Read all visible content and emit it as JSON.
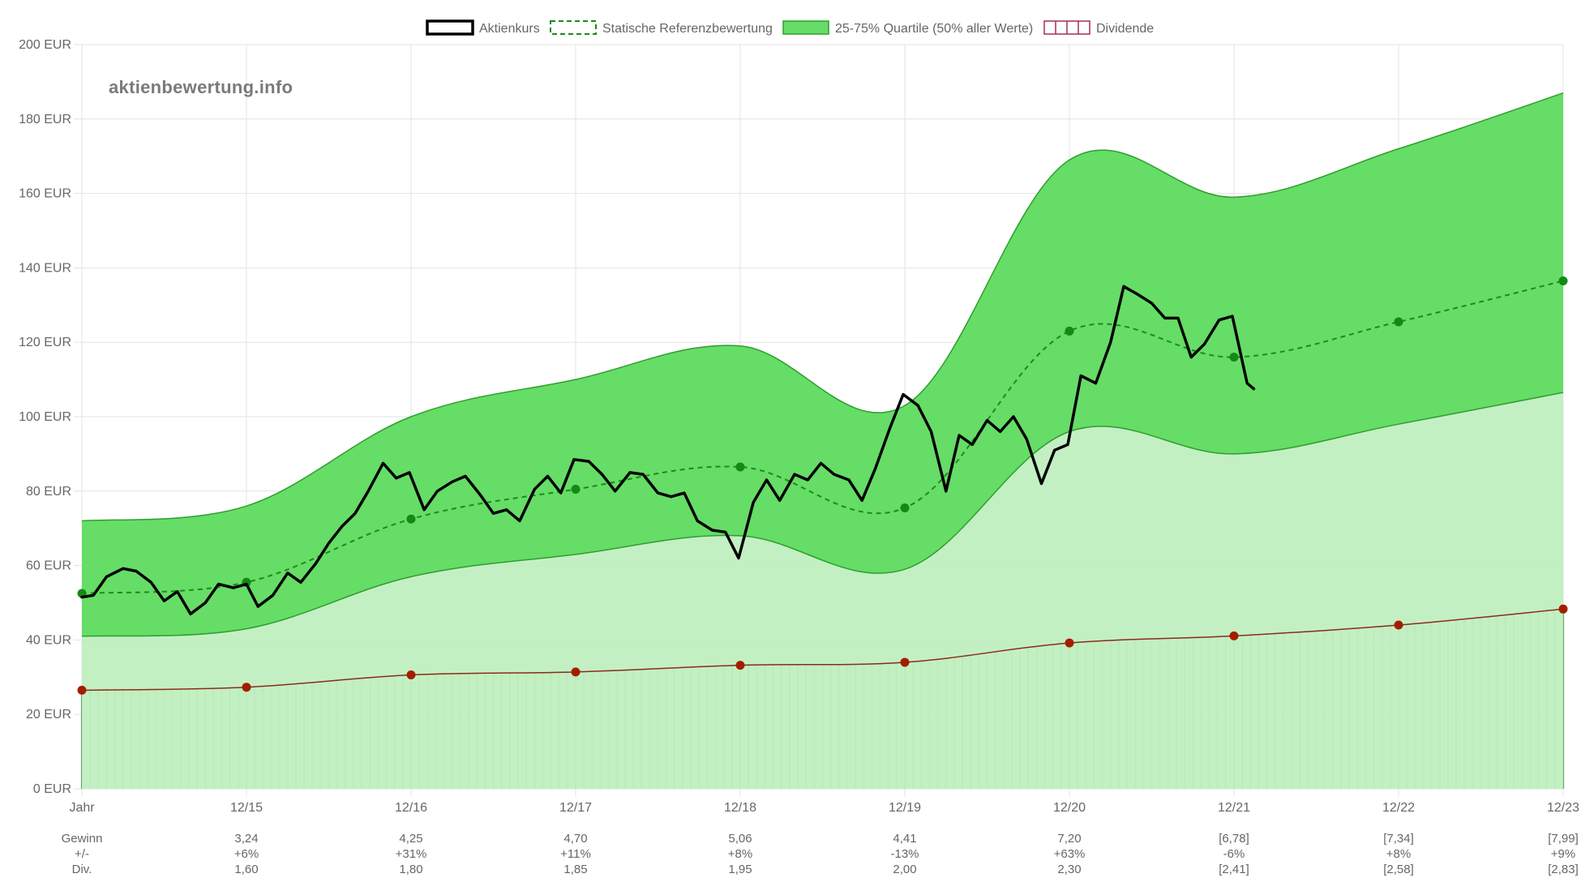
{
  "chart_data": {
    "type": "line",
    "watermark": "aktienbewertung.info",
    "legend_position": "top-center",
    "legend": [
      {
        "label": "Aktienkurs",
        "style": "solid-black"
      },
      {
        "label": "Statische Referenzbewertung",
        "style": "dashed-green"
      },
      {
        "label": "25-75% Quartile (50% aller Werte)",
        "style": "green-fill"
      },
      {
        "label": "Dividende",
        "style": "red-bars"
      }
    ],
    "y_axis": {
      "min": 0,
      "max": 200,
      "step": 20,
      "unit": " EUR",
      "tick_labels": [
        "0 EUR",
        "20 EUR",
        "40 EUR",
        "60 EUR",
        "80 EUR",
        "100 EUR",
        "120 EUR",
        "140 EUR",
        "160 EUR",
        "180 EUR",
        "200 EUR"
      ]
    },
    "x_axis": {
      "min": 0,
      "max": 9,
      "tick_labels": [
        "Jahr",
        "12/15",
        "12/16",
        "12/17",
        "12/18",
        "12/19",
        "12/20",
        "12/21",
        "12/22",
        "12/23"
      ],
      "grid": true
    },
    "colors": {
      "price": "#000000",
      "reference": "#1a8c1a",
      "reference_point": "#138a13",
      "quartile_upper_fill": "#66dd66",
      "quartile_lower_fill": "#c0efc0",
      "quartile_line": "#2e9e2e",
      "dividend_line": "#8b2b1b",
      "dividend_point": "#a31d00",
      "dividend_bar": "#3e8a4e",
      "grid": "#e3e3e3"
    },
    "quartile_upper": [
      [
        0,
        72
      ],
      [
        1,
        76
      ],
      [
        2,
        100
      ],
      [
        3,
        110
      ],
      [
        4,
        119
      ],
      [
        5,
        103
      ],
      [
        6,
        169
      ],
      [
        7,
        159
      ],
      [
        8,
        172
      ],
      [
        9,
        187
      ]
    ],
    "quartile_lower": [
      [
        0,
        41
      ],
      [
        1,
        43
      ],
      [
        2,
        57
      ],
      [
        3,
        63
      ],
      [
        4,
        68
      ],
      [
        5,
        59
      ],
      [
        6,
        96
      ],
      [
        7,
        90
      ],
      [
        8,
        98
      ],
      [
        9,
        106.5
      ]
    ],
    "reference_valuation": [
      [
        0,
        52.5
      ],
      [
        1,
        55.5
      ],
      [
        2,
        72.5
      ],
      [
        3,
        80.5
      ],
      [
        4,
        86.5
      ],
      [
        5,
        75.5
      ],
      [
        6,
        123
      ],
      [
        7,
        116
      ],
      [
        8,
        125.5
      ],
      [
        9,
        136.5
      ]
    ],
    "dividend_level": [
      [
        0,
        26.5
      ],
      [
        1,
        27.3
      ],
      [
        2,
        30.6
      ],
      [
        3,
        31.4
      ],
      [
        4,
        33.2
      ],
      [
        5,
        34
      ],
      [
        6,
        39.2
      ],
      [
        7,
        41.1
      ],
      [
        8,
        44
      ],
      [
        9,
        48.3
      ]
    ],
    "stock_price": [
      [
        0,
        51.5
      ],
      [
        0.07,
        52
      ],
      [
        0.15,
        57
      ],
      [
        0.25,
        59.2
      ],
      [
        0.33,
        58.5
      ],
      [
        0.42,
        55.5
      ],
      [
        0.5,
        50.5
      ],
      [
        0.58,
        53
      ],
      [
        0.66,
        47
      ],
      [
        0.75,
        50
      ],
      [
        0.83,
        55
      ],
      [
        0.92,
        54
      ],
      [
        1.0,
        55
      ],
      [
        1.07,
        49
      ],
      [
        1.16,
        52
      ],
      [
        1.25,
        58
      ],
      [
        1.33,
        55.5
      ],
      [
        1.42,
        60.5
      ],
      [
        1.5,
        66
      ],
      [
        1.58,
        70.5
      ],
      [
        1.66,
        74
      ],
      [
        1.74,
        80
      ],
      [
        1.83,
        87.5
      ],
      [
        1.91,
        83.5
      ],
      [
        1.99,
        85
      ],
      [
        2.08,
        75
      ],
      [
        2.16,
        80
      ],
      [
        2.25,
        82.5
      ],
      [
        2.33,
        84
      ],
      [
        2.42,
        79
      ],
      [
        2.5,
        74
      ],
      [
        2.58,
        75
      ],
      [
        2.66,
        72
      ],
      [
        2.75,
        80.5
      ],
      [
        2.83,
        84
      ],
      [
        2.91,
        79.5
      ],
      [
        2.99,
        88.5
      ],
      [
        3.08,
        88
      ],
      [
        3.16,
        84.5
      ],
      [
        3.24,
        80
      ],
      [
        3.33,
        85
      ],
      [
        3.41,
        84.5
      ],
      [
        3.5,
        79.5
      ],
      [
        3.58,
        78.5
      ],
      [
        3.66,
        79.5
      ],
      [
        3.74,
        72
      ],
      [
        3.83,
        69.5
      ],
      [
        3.91,
        69
      ],
      [
        3.99,
        62
      ],
      [
        4.08,
        77
      ],
      [
        4.16,
        83
      ],
      [
        4.24,
        77.5
      ],
      [
        4.33,
        84.5
      ],
      [
        4.41,
        83
      ],
      [
        4.49,
        87.5
      ],
      [
        4.57,
        84.5
      ],
      [
        4.66,
        83
      ],
      [
        4.74,
        77.5
      ],
      [
        4.82,
        86
      ],
      [
        4.91,
        97
      ],
      [
        4.99,
        106
      ],
      [
        5.08,
        103
      ],
      [
        5.16,
        96
      ],
      [
        5.25,
        80
      ],
      [
        5.33,
        95
      ],
      [
        5.41,
        92.5
      ],
      [
        5.5,
        99
      ],
      [
        5.58,
        96
      ],
      [
        5.66,
        100
      ],
      [
        5.74,
        94
      ],
      [
        5.83,
        82
      ],
      [
        5.91,
        91
      ],
      [
        5.99,
        92.5
      ],
      [
        6.07,
        111
      ],
      [
        6.16,
        109
      ],
      [
        6.25,
        120
      ],
      [
        6.33,
        135
      ],
      [
        6.41,
        133
      ],
      [
        6.5,
        130.5
      ],
      [
        6.58,
        126.5
      ],
      [
        6.66,
        126.5
      ],
      [
        6.74,
        116
      ],
      [
        6.82,
        119.5
      ],
      [
        6.91,
        126
      ],
      [
        6.99,
        127
      ],
      [
        7.08,
        109
      ],
      [
        7.12,
        107.5
      ]
    ],
    "table": {
      "rows": [
        {
          "label": "Gewinn",
          "values": [
            "3,24",
            "4,25",
            "4,70",
            "5,06",
            "4,41",
            "7,20",
            "[6,78]",
            "[7,34]",
            "[7,99]"
          ]
        },
        {
          "label": "+/-",
          "values": [
            "+6%",
            "+31%",
            "+11%",
            "+8%",
            "-13%",
            "+63%",
            "-6%",
            "+8%",
            "+9%"
          ]
        },
        {
          "label": "Div.",
          "values": [
            "1,60",
            "1,80",
            "1,85",
            "1,95",
            "2,00",
            "2,30",
            "[2,41]",
            "[2,58]",
            "[2,83]"
          ]
        }
      ]
    }
  }
}
